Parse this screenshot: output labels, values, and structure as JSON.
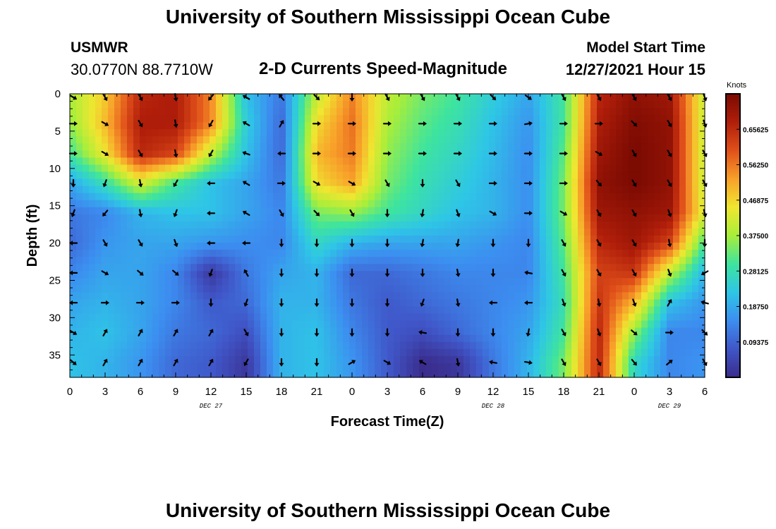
{
  "header": {
    "title": "University of Southern Mississippi Ocean Cube",
    "station": "USMWR",
    "coords": "30.0770N  88.7710W",
    "plot_title": "2-D Currents Speed-Magnitude",
    "model_start_label": "Model Start Time",
    "model_start_value": "12/27/2021 Hour 15"
  },
  "footer": {
    "title": "University of Southern Mississippi Ocean Cube"
  },
  "colors": {
    "ramp": [
      "#3a2c8c",
      "#4056c8",
      "#3c8ef0",
      "#2ec6e6",
      "#3ee49e",
      "#a8ee3a",
      "#f0e630",
      "#f8a02a",
      "#e0501a",
      "#b01e0a",
      "#7a0a02"
    ]
  },
  "chart_data": {
    "type": "heatmap",
    "title": "2-D Currents Speed-Magnitude",
    "xlabel": "Forecast Time(Z)",
    "ylabel": "Depth (ft)",
    "colorbar_label": "Knots",
    "colorbar_ticks": [
      "0.65625",
      "0.56250",
      "0.46875",
      "0.37500",
      "0.28125",
      "0.18750",
      "0.09375"
    ],
    "colorbar_values": [
      0.65625,
      0.5625,
      0.46875,
      0.375,
      0.28125,
      0.1875,
      0.09375
    ],
    "vmin": 0.0,
    "vmax": 0.75,
    "ylim": [
      0,
      38
    ],
    "yticks": [
      0,
      5,
      10,
      15,
      20,
      25,
      30,
      35
    ],
    "xlim": [
      0,
      54
    ],
    "xtick_labels": [
      "0",
      "3",
      "6",
      "9",
      "12",
      "15",
      "18",
      "21",
      "0",
      "3",
      "6",
      "9",
      "12",
      "15",
      "18",
      "21",
      "0",
      "3",
      "6"
    ],
    "day_labels": [
      {
        "label": "DEC 27",
        "x": 12
      },
      {
        "label": "DEC 28",
        "x": 36
      },
      {
        "label": "DEC 29",
        "x": 51
      }
    ],
    "times": [
      0,
      3,
      6,
      9,
      12,
      15,
      18,
      21,
      24,
      27,
      30,
      33,
      36,
      39,
      42,
      45,
      48,
      51,
      54
    ],
    "depths": [
      0,
      4,
      8,
      12,
      16,
      20,
      24,
      28,
      32,
      36
    ],
    "speed": [
      [
        0.38,
        0.48,
        0.66,
        0.68,
        0.55,
        0.22,
        0.12,
        0.4,
        0.55,
        0.4,
        0.34,
        0.3,
        0.24,
        0.18,
        0.3,
        0.66,
        0.72,
        0.7,
        0.4
      ],
      [
        0.36,
        0.5,
        0.68,
        0.68,
        0.55,
        0.24,
        0.1,
        0.46,
        0.57,
        0.38,
        0.32,
        0.28,
        0.22,
        0.16,
        0.3,
        0.68,
        0.74,
        0.72,
        0.4
      ],
      [
        0.3,
        0.45,
        0.66,
        0.62,
        0.4,
        0.22,
        0.1,
        0.5,
        0.56,
        0.36,
        0.3,
        0.26,
        0.21,
        0.15,
        0.32,
        0.7,
        0.75,
        0.72,
        0.4
      ],
      [
        0.18,
        0.28,
        0.42,
        0.3,
        0.22,
        0.18,
        0.12,
        0.46,
        0.52,
        0.34,
        0.28,
        0.24,
        0.2,
        0.15,
        0.34,
        0.72,
        0.75,
        0.72,
        0.4
      ],
      [
        0.12,
        0.14,
        0.2,
        0.22,
        0.22,
        0.18,
        0.14,
        0.34,
        0.36,
        0.3,
        0.26,
        0.22,
        0.2,
        0.15,
        0.34,
        0.7,
        0.72,
        0.7,
        0.42
      ],
      [
        0.1,
        0.16,
        0.18,
        0.18,
        0.16,
        0.15,
        0.14,
        0.26,
        0.2,
        0.18,
        0.18,
        0.18,
        0.16,
        0.14,
        0.32,
        0.66,
        0.7,
        0.62,
        0.3
      ],
      [
        0.14,
        0.18,
        0.18,
        0.14,
        0.02,
        0.12,
        0.18,
        0.2,
        0.1,
        0.1,
        0.12,
        0.14,
        0.14,
        0.14,
        0.3,
        0.62,
        0.64,
        0.4,
        0.2
      ],
      [
        0.18,
        0.2,
        0.18,
        0.14,
        0.08,
        0.1,
        0.2,
        0.2,
        0.12,
        0.08,
        0.1,
        0.12,
        0.14,
        0.16,
        0.28,
        0.64,
        0.5,
        0.22,
        0.16
      ],
      [
        0.2,
        0.22,
        0.18,
        0.12,
        0.1,
        0.06,
        0.2,
        0.22,
        0.14,
        0.08,
        0.06,
        0.1,
        0.14,
        0.18,
        0.3,
        0.66,
        0.36,
        0.14,
        0.14
      ],
      [
        0.22,
        0.2,
        0.16,
        0.1,
        0.08,
        0.02,
        0.2,
        0.22,
        0.16,
        0.08,
        0.0,
        0.02,
        0.12,
        0.2,
        0.34,
        0.66,
        0.26,
        0.14,
        0.16
      ]
    ],
    "arrow_times": [
      0,
      3,
      6,
      9,
      12,
      15,
      18,
      21,
      24,
      27,
      30,
      33,
      36,
      39,
      42,
      45,
      48,
      51,
      54
    ],
    "arrow_depths": [
      0,
      4,
      8,
      12,
      16,
      20,
      24,
      28,
      32,
      36
    ],
    "arrow_dirs_deg": [
      [
        120,
        150,
        150,
        170,
        220,
        300,
        320,
        135,
        180,
        150,
        150,
        150,
        135,
        125,
        150,
        150,
        150,
        150,
        160
      ],
      [
        90,
        120,
        150,
        170,
        210,
        300,
        30,
        90,
        90,
        90,
        90,
        90,
        90,
        80,
        90,
        90,
        135,
        150,
        160
      ],
      [
        90,
        120,
        150,
        170,
        210,
        290,
        270,
        90,
        90,
        90,
        90,
        90,
        90,
        90,
        90,
        120,
        150,
        150,
        150
      ],
      [
        180,
        200,
        170,
        210,
        270,
        300,
        90,
        120,
        120,
        150,
        180,
        150,
        90,
        90,
        90,
        140,
        150,
        150,
        150
      ],
      [
        200,
        220,
        170,
        200,
        270,
        300,
        150,
        135,
        150,
        180,
        190,
        160,
        120,
        90,
        120,
        150,
        150,
        160,
        165
      ],
      [
        270,
        150,
        150,
        160,
        270,
        270,
        180,
        180,
        180,
        180,
        190,
        190,
        180,
        180,
        150,
        150,
        150,
        170,
        180
      ],
      [
        270,
        120,
        130,
        130,
        200,
        330,
        180,
        180,
        180,
        180,
        180,
        170,
        180,
        280,
        150,
        150,
        150,
        160,
        240
      ],
      [
        270,
        90,
        90,
        90,
        180,
        200,
        180,
        180,
        180,
        180,
        200,
        170,
        270,
        270,
        160,
        170,
        160,
        30,
        285
      ],
      [
        120,
        30,
        30,
        30,
        30,
        150,
        180,
        180,
        180,
        180,
        280,
        180,
        180,
        190,
        150,
        160,
        130,
        90,
        135
      ],
      [
        130,
        30,
        30,
        30,
        30,
        210,
        180,
        180,
        60,
        120,
        300,
        170,
        280,
        100,
        150,
        150,
        140,
        50,
        150
      ]
    ]
  }
}
